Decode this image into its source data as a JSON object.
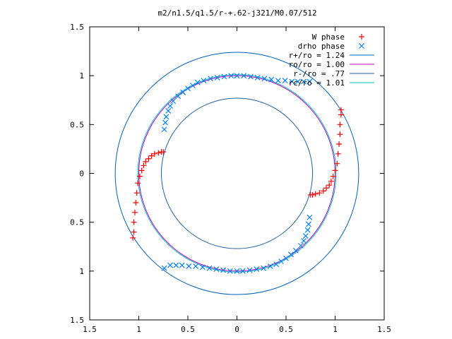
{
  "chart_data": {
    "type": "scatter",
    "title": "m2/n1.5/q1.5/r-+.62-j321/M0.07/512",
    "xlim": [
      -1.5,
      1.5
    ],
    "ylim": [
      -1.5,
      1.5
    ],
    "x_ticks": [
      -1.5,
      -1,
      -0.5,
      0,
      0.5,
      1,
      1.5
    ],
    "y_ticks": [
      -1.5,
      -1,
      -0.5,
      0,
      0.5,
      1,
      1.5
    ],
    "x_tick_labels": [
      "1.5",
      "1",
      "0.5",
      "0",
      "0.5",
      "1",
      "1.5"
    ],
    "y_tick_labels": [
      "1.5",
      "1",
      "0.5",
      "0",
      "0.5",
      "1",
      "1.5"
    ],
    "grid": false,
    "legend_position": "top-right",
    "legend": [
      {
        "label": "W phase",
        "marker": "+",
        "color": "#ff0000"
      },
      {
        "label": "drho phase",
        "marker": "x",
        "color": "#0080ff"
      },
      {
        "label": "r+/ro = 1.24",
        "line": true,
        "color": "#0060c0"
      },
      {
        "label": "ro/ro = 1.00",
        "line": true,
        "color": "#c000c0"
      },
      {
        "label": "r-/ro = .77",
        "line": true,
        "color": "#2060a0"
      },
      {
        "label": "rc/ro = 1.01",
        "line": true,
        "color": "#00c0c0"
      }
    ],
    "circles": [
      {
        "name": "r+/ro = 1.24",
        "r": 1.24,
        "color": "#0060c0"
      },
      {
        "name": "ro/ro = 1.00",
        "r": 1.0,
        "color": "#c000c0"
      },
      {
        "name": "r-/ro = .77",
        "r": 0.77,
        "color": "#2060a0"
      },
      {
        "name": "rc/ro = 1.01",
        "r": 1.01,
        "color": "#00c0c0"
      }
    ],
    "series": [
      {
        "name": "W phase",
        "marker": "+",
        "color": "#ff0000",
        "x": [
          -1.06,
          -1.05,
          -1.05,
          -1.04,
          -1.03,
          -1.02,
          -1.01,
          -0.99,
          -0.97,
          -0.95,
          -0.93,
          -0.9,
          -0.87,
          -0.84,
          -0.8,
          -0.77,
          -0.75,
          1.06,
          1.06,
          1.05,
          1.05,
          1.04,
          1.03,
          1.02,
          1.0,
          0.98,
          0.96,
          0.94,
          0.91,
          0.88,
          0.84,
          0.8,
          0.77,
          0.75
        ],
        "y": [
          -0.66,
          -0.6,
          -0.5,
          -0.4,
          -0.3,
          -0.2,
          -0.1,
          -0.03,
          0.03,
          0.08,
          0.12,
          0.15,
          0.18,
          0.2,
          0.21,
          0.22,
          0.22,
          0.65,
          0.6,
          0.5,
          0.4,
          0.3,
          0.2,
          0.1,
          0.03,
          -0.03,
          -0.08,
          -0.12,
          -0.15,
          -0.18,
          -0.2,
          -0.21,
          -0.22,
          -0.22
        ]
      },
      {
        "name": "drho phase",
        "marker": "x",
        "color": "#0080ff",
        "x": [
          -0.74,
          -0.73,
          -0.72,
          -0.7,
          -0.68,
          -0.65,
          -0.6,
          -0.55,
          -0.5,
          -0.45,
          -0.4,
          -0.34,
          -0.27,
          -0.2,
          -0.13,
          -0.06,
          0.0,
          0.07,
          0.14,
          0.21,
          0.28,
          0.35,
          0.42,
          0.49,
          0.56,
          0.62,
          0.68,
          0.74,
          0.74,
          0.73,
          0.72,
          0.7,
          0.68,
          0.65,
          0.6,
          0.55,
          0.5,
          0.45,
          0.4,
          0.34,
          0.27,
          0.2,
          0.13,
          0.06,
          0.0,
          -0.07,
          -0.14,
          -0.21,
          -0.28,
          -0.35,
          -0.42,
          -0.49,
          -0.56,
          -0.62,
          -0.68,
          -0.74
        ],
        "y": [
          0.45,
          0.52,
          0.58,
          0.64,
          0.69,
          0.74,
          0.79,
          0.83,
          0.87,
          0.9,
          0.93,
          0.95,
          0.97,
          0.98,
          0.99,
          1.0,
          1.0,
          1.0,
          0.99,
          0.98,
          0.97,
          0.96,
          0.95,
          0.95,
          0.94,
          0.94,
          0.94,
          0.94,
          -0.45,
          -0.52,
          -0.58,
          -0.64,
          -0.69,
          -0.74,
          -0.79,
          -0.83,
          -0.87,
          -0.9,
          -0.93,
          -0.95,
          -0.97,
          -0.98,
          -0.99,
          -1.0,
          -1.0,
          -1.0,
          -0.99,
          -0.98,
          -0.97,
          -0.96,
          -0.95,
          -0.95,
          -0.94,
          -0.94,
          -0.94,
          -0.97
        ]
      }
    ]
  }
}
